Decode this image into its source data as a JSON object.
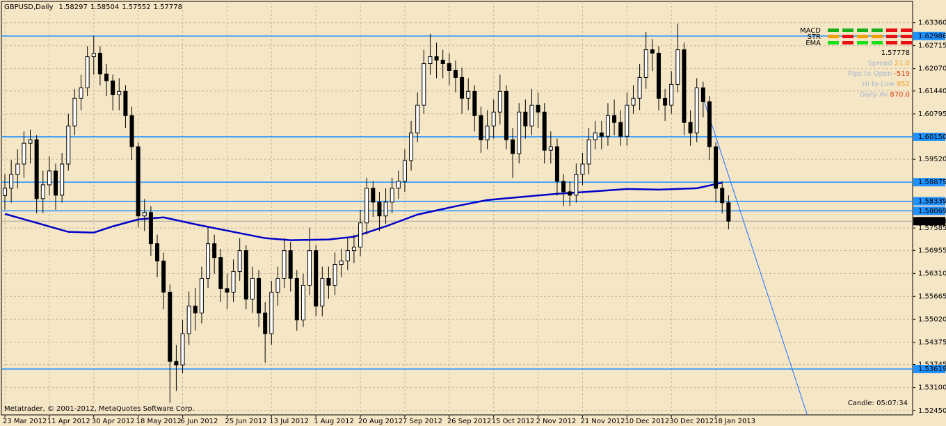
{
  "chart_data": {
    "type": "candlestick",
    "symbol": "GBPUSD,Daily",
    "header_values": [
      1.58297,
      1.58504,
      1.57552,
      1.57778
    ],
    "xlim": [
      -0.55,
      143.0
    ],
    "ylim": [
      1.5233,
      1.6396
    ],
    "grid": true,
    "xticks": [
      {
        "value": 0,
        "label": "23 Mar 2012"
      },
      {
        "value": 7,
        "label": "11 Apr 2012"
      },
      {
        "value": 14,
        "label": "30 Apr 2012"
      },
      {
        "value": 21,
        "label": "18 May 2012"
      },
      {
        "value": 28,
        "label": "6 Jun 2012"
      },
      {
        "value": 35,
        "label": "25 Jun 2012"
      },
      {
        "value": 42,
        "label": "13 Jul 2012"
      },
      {
        "value": 49,
        "label": "1 Aug 2012"
      },
      {
        "value": 56,
        "label": "20 Aug 2012"
      },
      {
        "value": 63,
        "label": "7 Sep 2012"
      },
      {
        "value": 70,
        "label": "26 Sep 2012"
      },
      {
        "value": 77,
        "label": "15 Oct 2012"
      },
      {
        "value": 84,
        "label": "2 Nov 2012"
      },
      {
        "value": 91,
        "label": "21 Nov 2012"
      },
      {
        "value": 98,
        "label": "10 Dec 2012"
      },
      {
        "value": 105,
        "label": "30 Dec 2012"
      },
      {
        "value": 112,
        "label": "18 Jan 2013"
      }
    ],
    "yticks": [
      {
        "value": 1.6336,
        "label": "1.63360"
      },
      {
        "value": 1.62715,
        "label": "1.62715"
      },
      {
        "value": 1.6207,
        "label": "1.62070"
      },
      {
        "value": 1.6144,
        "label": "1.61440"
      },
      {
        "value": 1.60795,
        "label": "1.60795"
      },
      {
        "value": 1.5952,
        "label": "1.59520"
      },
      {
        "value": 1.57585,
        "label": "1.57585"
      },
      {
        "value": 1.56955,
        "label": "1.56955"
      },
      {
        "value": 1.5631,
        "label": "1.56310"
      },
      {
        "value": 1.55665,
        "label": "1.55665"
      },
      {
        "value": 1.5502,
        "label": "1.55020"
      },
      {
        "value": 1.54375,
        "label": "1.54375"
      },
      {
        "value": 1.53745,
        "label": "1.53745"
      },
      {
        "value": 1.531,
        "label": "1.53100"
      },
      {
        "value": 1.5245,
        "label": "1.52450"
      }
    ],
    "levels": [
      {
        "value": 1.62986,
        "label": "1.62986"
      },
      {
        "value": 1.6015,
        "label": "1.60150"
      },
      {
        "value": 1.58875,
        "label": "1.58875"
      },
      {
        "value": 1.58339,
        "label": "1.58339"
      },
      {
        "value": 1.58069,
        "label": "1.58069"
      },
      {
        "value": 1.53619,
        "label": "1.53619"
      }
    ],
    "level_color": "#1e90ff",
    "current_price": {
      "value": 1.57778,
      "label": "1.57778"
    },
    "candles": [
      [
        1.585,
        1.591,
        1.581,
        1.58704
      ],
      [
        1.58704,
        1.595,
        1.583,
        1.59093
      ],
      [
        1.59093,
        1.598,
        1.587,
        1.59386
      ],
      [
        1.59386,
        1.603,
        1.59,
        1.5997
      ],
      [
        1.5997,
        1.6035,
        1.594,
        1.60068
      ],
      [
        1.60068,
        1.602,
        1.58,
        1.58412
      ],
      [
        1.58412,
        1.592,
        1.58,
        1.58801
      ],
      [
        1.58801,
        1.596,
        1.585,
        1.59191
      ],
      [
        1.59191,
        1.594,
        1.581,
        1.58509
      ],
      [
        1.58509,
        1.597,
        1.583,
        1.59386
      ],
      [
        1.59386,
        1.608,
        1.592,
        1.60457
      ],
      [
        1.60457,
        1.615,
        1.602,
        1.61236
      ],
      [
        1.61236,
        1.619,
        1.609,
        1.61529
      ],
      [
        1.61529,
        1.627,
        1.613,
        1.62405
      ],
      [
        1.62405,
        1.62986,
        1.619,
        1.62503
      ],
      [
        1.62503,
        1.627,
        1.616,
        1.61918
      ],
      [
        1.61918,
        1.622,
        1.613,
        1.61724
      ],
      [
        1.61724,
        1.619,
        1.609,
        1.61334
      ],
      [
        1.61334,
        1.618,
        1.609,
        1.61431
      ],
      [
        1.61431,
        1.616,
        1.604,
        1.60749
      ],
      [
        1.60749,
        1.61,
        1.595,
        1.59873
      ],
      [
        1.59873,
        1.6,
        1.576,
        1.57925
      ],
      [
        1.57925,
        1.584,
        1.575,
        1.58022
      ],
      [
        1.58022,
        1.582,
        1.568,
        1.57145
      ],
      [
        1.57145,
        1.574,
        1.562,
        1.56658
      ],
      [
        1.56658,
        1.569,
        1.553,
        1.55782
      ],
      [
        1.55782,
        1.56,
        1.5267,
        1.53833
      ],
      [
        1.53833,
        1.543,
        1.53,
        1.53736
      ],
      [
        1.53736,
        1.55,
        1.535,
        1.54613
      ],
      [
        1.54613,
        1.558,
        1.543,
        1.55392
      ],
      [
        1.55392,
        1.559,
        1.547,
        1.55197
      ],
      [
        1.55197,
        1.565,
        1.549,
        1.56171
      ],
      [
        1.56171,
        1.576,
        1.559,
        1.57145
      ],
      [
        1.57145,
        1.574,
        1.563,
        1.56756
      ],
      [
        1.56756,
        1.57,
        1.555,
        1.55879
      ],
      [
        1.55879,
        1.563,
        1.553,
        1.55782
      ],
      [
        1.55782,
        1.567,
        1.555,
        1.56366
      ],
      [
        1.56366,
        1.573,
        1.561,
        1.5695
      ],
      [
        1.5695,
        1.571,
        1.553,
        1.55587
      ],
      [
        1.55587,
        1.565,
        1.552,
        1.56171
      ],
      [
        1.56171,
        1.564,
        1.548,
        1.55197
      ],
      [
        1.55197,
        1.555,
        1.538,
        1.54613
      ],
      [
        1.54613,
        1.561,
        1.543,
        1.55782
      ],
      [
        1.55782,
        1.565,
        1.554,
        1.56171
      ],
      [
        1.56171,
        1.573,
        1.559,
        1.5695
      ],
      [
        1.5695,
        1.572,
        1.558,
        1.56171
      ],
      [
        1.56171,
        1.564,
        1.547,
        1.55002
      ],
      [
        1.55002,
        1.563,
        1.548,
        1.55976
      ],
      [
        1.55976,
        1.576,
        1.557,
        1.5695
      ],
      [
        1.5695,
        1.571,
        1.551,
        1.55392
      ],
      [
        1.55392,
        1.565,
        1.551,
        1.56171
      ],
      [
        1.56171,
        1.565,
        1.556,
        1.55976
      ],
      [
        1.55976,
        1.569,
        1.557,
        1.56561
      ],
      [
        1.56561,
        1.57,
        1.562,
        1.56658
      ],
      [
        1.56658,
        1.573,
        1.564,
        1.5695
      ],
      [
        1.5695,
        1.574,
        1.566,
        1.57048
      ],
      [
        1.57048,
        1.581,
        1.568,
        1.5773
      ],
      [
        1.5773,
        1.59,
        1.574,
        1.58704
      ],
      [
        1.58704,
        1.589,
        1.579,
        1.58314
      ],
      [
        1.58314,
        1.586,
        1.575,
        1.57925
      ],
      [
        1.57925,
        1.587,
        1.577,
        1.58314
      ],
      [
        1.58314,
        1.59,
        1.58,
        1.58704
      ],
      [
        1.58704,
        1.592,
        1.584,
        1.58899
      ],
      [
        1.58899,
        1.598,
        1.586,
        1.59483
      ],
      [
        1.59483,
        1.606,
        1.592,
        1.60262
      ],
      [
        1.60262,
        1.614,
        1.6,
        1.61042
      ],
      [
        1.61042,
        1.626,
        1.608,
        1.62211
      ],
      [
        1.62211,
        1.6305,
        1.619,
        1.62405
      ],
      [
        1.62405,
        1.628,
        1.618,
        1.62308
      ],
      [
        1.62308,
        1.626,
        1.618,
        1.62211
      ],
      [
        1.62211,
        1.625,
        1.616,
        1.62016
      ],
      [
        1.62016,
        1.623,
        1.614,
        1.61821
      ],
      [
        1.61821,
        1.621,
        1.608,
        1.61236
      ],
      [
        1.61236,
        1.618,
        1.609,
        1.61431
      ],
      [
        1.61431,
        1.616,
        1.603,
        1.60749
      ],
      [
        1.60749,
        1.61,
        1.597,
        1.60068
      ],
      [
        1.60068,
        1.609,
        1.598,
        1.60457
      ],
      [
        1.60457,
        1.612,
        1.601,
        1.60847
      ],
      [
        1.60847,
        1.619,
        1.605,
        1.61431
      ],
      [
        1.61431,
        1.616,
        1.598,
        1.60068
      ],
      [
        1.60068,
        1.604,
        1.59,
        1.59678
      ],
      [
        1.59678,
        1.611,
        1.594,
        1.60847
      ],
      [
        1.60847,
        1.612,
        1.601,
        1.60457
      ],
      [
        1.60457,
        1.615,
        1.602,
        1.61042
      ],
      [
        1.61042,
        1.614,
        1.604,
        1.60847
      ],
      [
        1.60847,
        1.611,
        1.594,
        1.59775
      ],
      [
        1.59775,
        1.603,
        1.594,
        1.59873
      ],
      [
        1.59873,
        1.601,
        1.585,
        1.58899
      ],
      [
        1.58899,
        1.591,
        1.582,
        1.58606
      ],
      [
        1.58606,
        1.589,
        1.582,
        1.58509
      ],
      [
        1.58509,
        1.594,
        1.583,
        1.59093
      ],
      [
        1.59093,
        1.597,
        1.588,
        1.59386
      ],
      [
        1.59386,
        1.604,
        1.591,
        1.60068
      ],
      [
        1.60068,
        1.606,
        1.598,
        1.60262
      ],
      [
        1.60262,
        1.606,
        1.598,
        1.60165
      ],
      [
        1.60165,
        1.611,
        1.599,
        1.60749
      ],
      [
        1.60749,
        1.612,
        1.602,
        1.60555
      ],
      [
        1.60555,
        1.609,
        1.599,
        1.60165
      ],
      [
        1.60165,
        1.614,
        1.599,
        1.61042
      ],
      [
        1.61042,
        1.616,
        1.608,
        1.61236
      ],
      [
        1.61236,
        1.622,
        1.609,
        1.61821
      ],
      [
        1.61821,
        1.631,
        1.615,
        1.626
      ],
      [
        1.626,
        1.629,
        1.62,
        1.62503
      ],
      [
        1.62503,
        1.627,
        1.609,
        1.61236
      ],
      [
        1.61236,
        1.615,
        1.606,
        1.61042
      ],
      [
        1.61042,
        1.62,
        1.608,
        1.61626
      ],
      [
        1.61626,
        1.6334,
        1.614,
        1.626
      ],
      [
        1.626,
        1.628,
        1.602,
        1.60555
      ],
      [
        1.60555,
        1.609,
        1.599,
        1.60262
      ],
      [
        1.60262,
        1.618,
        1.6,
        1.61529
      ],
      [
        1.61529,
        1.617,
        1.607,
        1.61139
      ],
      [
        1.61139,
        1.613,
        1.595,
        1.59873
      ],
      [
        1.59873,
        1.6,
        1.583,
        1.58704
      ],
      [
        1.58704,
        1.589,
        1.58,
        1.58297
      ],
      [
        1.58297,
        1.58504,
        1.57552,
        1.57778
      ]
    ],
    "ma": {
      "color": "#0000c8",
      "x": [
        0,
        5,
        10,
        14,
        17,
        21,
        25,
        30,
        36,
        41,
        45,
        51,
        55,
        60,
        65,
        71,
        76,
        82,
        87,
        92,
        98,
        103,
        109,
        113
      ],
      "values": [
        1.57983,
        1.5773,
        1.57477,
        1.57457,
        1.57632,
        1.57827,
        1.57886,
        1.57691,
        1.57477,
        1.57301,
        1.57243,
        1.57262,
        1.5734,
        1.57632,
        1.57964,
        1.58197,
        1.58373,
        1.5847,
        1.58548,
        1.58606,
        1.58684,
        1.58665,
        1.58704,
        1.5886
      ]
    },
    "trendline": {
      "color": "#1e6fff",
      "x": [
        110,
        126.4
      ],
      "values": [
        1.61236,
        1.5233
      ]
    },
    "signals": {
      "rows": [
        "MACD",
        "STR",
        "EMA"
      ],
      "colors": [
        [
          "#18b018",
          "#18b018",
          "#18b018",
          "#18b018",
          "#e81010",
          "#e81010"
        ],
        [
          "#f0a000",
          "#e81010",
          "#f0a000",
          "#f0a000",
          "#e81010",
          "#e81010"
        ],
        [
          "#18e018",
          "#e81010",
          "#18e018",
          "#18e018",
          "#e81010",
          "#e81010"
        ]
      ]
    },
    "price_display": {
      "value": 1.57778,
      "label": "1.57778"
    },
    "stats": [
      {
        "label": "Spread",
        "value": {
          "value": 21,
          "label": "21.0"
        }
      },
      {
        "label": "Pips to Open",
        "value": -519
      },
      {
        "label": "Hi to Low",
        "value": 952
      },
      {
        "label": "Daily Av",
        "value": {
          "value": 870,
          "label": "870.0"
        }
      }
    ],
    "timer": "Candle:  05:07:34",
    "copyright": "Metatrader, © 2001-2012, MetaQuotes Software Corp."
  }
}
